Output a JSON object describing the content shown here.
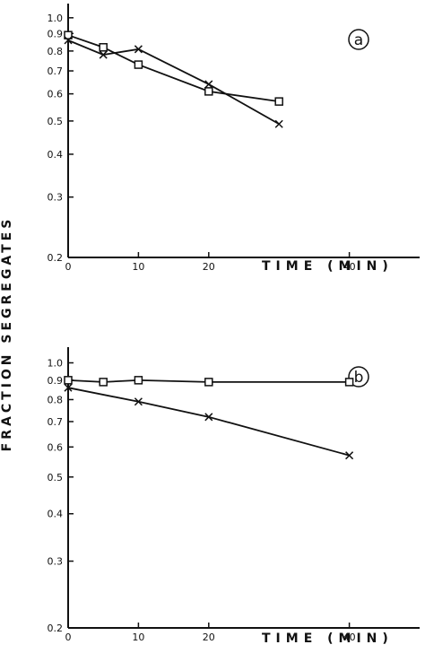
{
  "ylabel": "FRACTION SEGREGATES",
  "chart_data": [
    {
      "type": "line",
      "panel_label": "a",
      "xlabel": "TIME (MIN)",
      "ylabel": "FRACTION SEGREGATES",
      "y_scale": "log",
      "xlim": [
        0,
        50
      ],
      "ylim": [
        0.2,
        1.1
      ],
      "x_ticks": [
        0,
        10,
        20,
        40
      ],
      "y_ticks": [
        "0.2",
        "0.3",
        "0.4",
        "0.5",
        "0.6",
        "0.7",
        "0.8",
        "0.9",
        "1.0"
      ],
      "series": [
        {
          "marker": "square",
          "points": [
            [
              0,
              0.89
            ],
            [
              5,
              0.82
            ],
            [
              10,
              0.73
            ],
            [
              20,
              0.61
            ],
            [
              30,
              0.57
            ]
          ]
        },
        {
          "marker": "x",
          "points": [
            [
              0,
              0.86
            ],
            [
              5,
              0.78
            ],
            [
              10,
              0.81
            ],
            [
              20,
              0.64
            ],
            [
              30,
              0.49
            ]
          ]
        }
      ]
    },
    {
      "type": "line",
      "panel_label": "b",
      "xlabel": "TIME (MIN)",
      "ylabel": "FRACTION SEGREGATES",
      "y_scale": "log",
      "xlim": [
        0,
        50
      ],
      "ylim": [
        0.2,
        1.1
      ],
      "x_ticks": [
        0,
        10,
        20,
        40
      ],
      "y_ticks": [
        "0.2",
        "0.3",
        "0.4",
        "0.5",
        "0.6",
        "0.7",
        "0.8",
        "0.9",
        "1.0"
      ],
      "series": [
        {
          "marker": "square",
          "points": [
            [
              0,
              0.9
            ],
            [
              5,
              0.89
            ],
            [
              10,
              0.9
            ],
            [
              20,
              0.89
            ],
            [
              40,
              0.89
            ]
          ]
        },
        {
          "marker": "x",
          "points": [
            [
              0,
              0.86
            ],
            [
              10,
              0.79
            ],
            [
              20,
              0.72
            ],
            [
              40,
              0.57
            ]
          ]
        }
      ]
    }
  ]
}
